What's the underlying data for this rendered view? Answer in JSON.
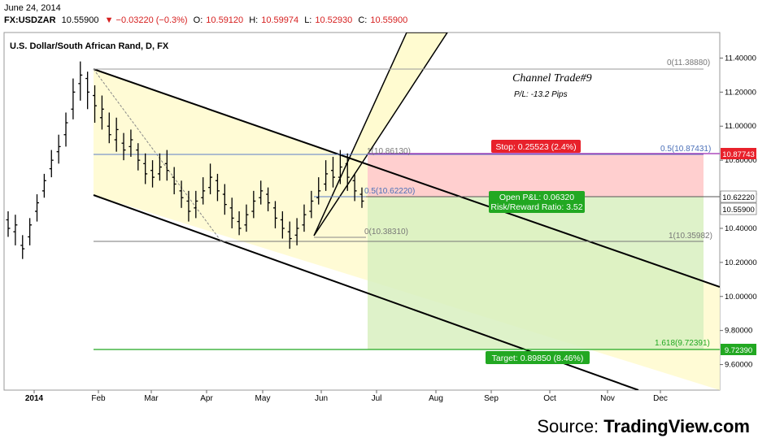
{
  "header": {
    "date": "June 24, 2014",
    "symbol": "FX:USDZAR",
    "last": "10.55900",
    "change": "▼ −0.03220 (−0.3%)",
    "ohlc": {
      "o_label": "O:",
      "o": "10.59120",
      "h_label": "H:",
      "h": "10.59974",
      "l_label": "L:",
      "l": "10.52930",
      "c_label": "C:",
      "c": "10.55900"
    }
  },
  "chart_title": "U.S. Dollar/South African Rand, D, FX",
  "annotation": {
    "title": "Channel Trade#9",
    "pl": "P/L: -13.2 Pips"
  },
  "fib_labels": {
    "f0": "0(11.38880)",
    "f05": "0.5(10.87431)",
    "f1": "1(10.35982)",
    "f1618": "1.618(9.72391)",
    "g1": "1(10.86130)",
    "g05": "0.5(10.62220)",
    "g0": "0(10.38310)"
  },
  "stop_label": "Stop: 0.25523 (2.4%)",
  "target_label": "Target: 0.89850 (8.46%)",
  "open_pl": "Open P&L: 0.06320",
  "risk_reward": "Risk/Reward Ratio: 3.52",
  "price_tags": {
    "stop": "10.87743",
    "entry": "10.62220",
    "last": "10.55900",
    "target": "9.72390"
  },
  "colors": {
    "up": "#000000",
    "stop_zone": "#ffcccc",
    "target_zone": "#d8f0c0",
    "channel": "#fffbd0",
    "stop_tag": "#e8212b",
    "target_tag": "#22a822"
  },
  "source": {
    "prefix": "Source: ",
    "brand": "TradingView.com"
  },
  "chart_data": {
    "type": "ohlc",
    "title": "U.S. Dollar/South African Rand, D, FX",
    "x_ticks": [
      "2014",
      "Feb",
      "Mar",
      "Apr",
      "May",
      "Jun",
      "Jul",
      "Aug",
      "Sep",
      "Oct",
      "Nov",
      "Dec"
    ],
    "y_ticks": [
      "9.60000",
      "9.80000",
      "10.00000",
      "10.20000",
      "10.40000",
      "10.60000",
      "10.80000",
      "11.00000",
      "11.20000",
      "11.40000"
    ],
    "ylim": [
      9.45,
      11.55
    ],
    "series": [
      {
        "values": [
          [
            10.45,
            10.4,
            10.5,
            10.35
          ],
          [
            10.38,
            10.42,
            10.48,
            10.3
          ],
          [
            10.3,
            10.28,
            10.36,
            10.22
          ],
          [
            10.35,
            10.42,
            10.46,
            10.3
          ],
          [
            10.5,
            10.55,
            10.6,
            10.44
          ],
          [
            10.62,
            10.68,
            10.72,
            10.58
          ],
          [
            10.75,
            10.8,
            10.86,
            10.7
          ],
          [
            10.85,
            10.88,
            10.95,
            10.78
          ],
          [
            10.95,
            11.02,
            11.08,
            10.88
          ],
          [
            11.1,
            11.2,
            11.28,
            11.04
          ],
          [
            11.25,
            11.3,
            11.38,
            11.15
          ],
          [
            11.28,
            11.2,
            11.32,
            11.1
          ],
          [
            11.18,
            11.12,
            11.24,
            11.02
          ],
          [
            11.05,
            11.1,
            11.18,
            10.98
          ],
          [
            11.0,
            10.95,
            11.08,
            10.9
          ],
          [
            10.92,
            10.98,
            11.05,
            10.85
          ],
          [
            10.9,
            10.86,
            10.96,
            10.8
          ],
          [
            10.88,
            10.92,
            10.98,
            10.82
          ],
          [
            10.86,
            10.8,
            10.9,
            10.74
          ],
          [
            10.78,
            10.72,
            10.84,
            10.66
          ],
          [
            10.74,
            10.7,
            10.8,
            10.64
          ],
          [
            10.72,
            10.76,
            10.84,
            10.68
          ],
          [
            10.78,
            10.74,
            10.86,
            10.68
          ],
          [
            10.7,
            10.66,
            10.76,
            10.6
          ],
          [
            10.62,
            10.58,
            10.68,
            10.52
          ],
          [
            10.56,
            10.5,
            10.62,
            10.44
          ],
          [
            10.52,
            10.56,
            10.62,
            10.46
          ],
          [
            10.58,
            10.62,
            10.7,
            10.54
          ],
          [
            10.64,
            10.7,
            10.78,
            10.6
          ],
          [
            10.68,
            10.62,
            10.72,
            10.56
          ],
          [
            10.6,
            10.54,
            10.66,
            10.48
          ],
          [
            10.52,
            10.46,
            10.58,
            10.4
          ],
          [
            10.44,
            10.4,
            10.5,
            10.36
          ],
          [
            10.42,
            10.48,
            10.54,
            10.38
          ],
          [
            10.5,
            10.56,
            10.62,
            10.46
          ],
          [
            10.58,
            10.62,
            10.68,
            10.54
          ],
          [
            10.6,
            10.55,
            10.64,
            10.5
          ],
          [
            10.52,
            10.46,
            10.56,
            10.4
          ],
          [
            10.45,
            10.4,
            10.5,
            10.34
          ],
          [
            10.38,
            10.34,
            10.44,
            10.28
          ],
          [
            10.36,
            10.4,
            10.46,
            10.3
          ],
          [
            10.42,
            10.48,
            10.54,
            10.38
          ],
          [
            10.5,
            10.56,
            10.62,
            10.46
          ],
          [
            10.58,
            10.62,
            10.7,
            10.54
          ],
          [
            10.66,
            10.72,
            10.8,
            10.62
          ],
          [
            10.74,
            10.7,
            10.82,
            10.64
          ],
          [
            10.7,
            10.76,
            10.86,
            10.66
          ],
          [
            10.78,
            10.7,
            10.84,
            10.62
          ],
          [
            10.68,
            10.62,
            10.72,
            10.56
          ],
          [
            10.6,
            10.56,
            10.64,
            10.52
          ]
        ]
      }
    ]
  }
}
